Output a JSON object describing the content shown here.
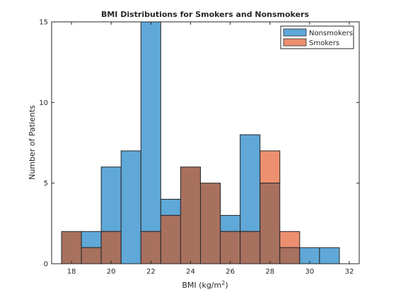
{
  "chart_data": {
    "type": "bar",
    "title": "BMI Distributions for Smokers and Nonsmokers",
    "xlabel": "BMI (kg/m",
    "xlabel_sup": "2",
    "xlabel_close": ")",
    "ylabel": "Number of Patients",
    "xlim": [
      17,
      32.5
    ],
    "ylim": [
      0,
      15
    ],
    "xticks": [
      18,
      20,
      22,
      24,
      26,
      28,
      30,
      32
    ],
    "yticks": [
      0,
      5,
      10,
      15
    ],
    "bin_edges": [
      17.5,
      18.5,
      19.5,
      20.5,
      21.5,
      22.5,
      23.5,
      24.5,
      25.5,
      26.5,
      27.5,
      28.5,
      29.5,
      30.5,
      31.5
    ],
    "grid": false,
    "legend_position": "top-right",
    "overlap_color": "#a8705f",
    "series": [
      {
        "name": "Nonsmokers",
        "color": "#5fa8d8",
        "values": [
          2,
          2,
          6,
          7,
          15,
          4,
          6,
          5,
          3,
          8,
          5,
          1,
          1,
          1
        ]
      },
      {
        "name": "Smokers",
        "color": "#ec9070",
        "values": [
          2,
          1,
          2,
          0,
          2,
          3,
          6,
          5,
          2,
          2,
          7,
          2,
          0,
          0
        ]
      }
    ]
  }
}
